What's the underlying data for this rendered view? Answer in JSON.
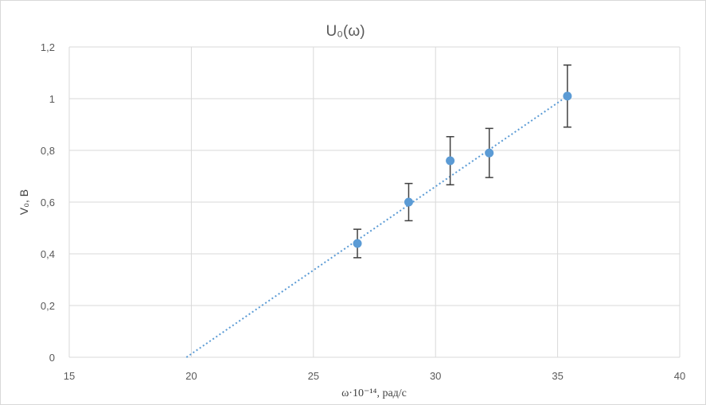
{
  "chart_data": {
    "type": "scatter",
    "title": "U₀(ω)",
    "xlabel": "ω·10⁻¹⁴, рад/с",
    "ylabel": "V₀, B",
    "xlim": [
      15,
      40
    ],
    "ylim": [
      0,
      1.2
    ],
    "x_ticks": [
      15,
      20,
      25,
      30,
      35,
      40
    ],
    "y_ticks": [
      0,
      0.2,
      0.4,
      0.6,
      0.8,
      1,
      1.2
    ],
    "x_tick_labels": [
      "15",
      "20",
      "25",
      "30",
      "35",
      "40"
    ],
    "y_tick_labels": [
      "0",
      "0,2",
      "0,4",
      "0,6",
      "0,8",
      "1",
      "1,2"
    ],
    "grid": true,
    "series": [
      {
        "x": [
          26.8,
          28.9,
          30.6,
          32.2,
          35.4
        ],
        "y": [
          0.44,
          0.6,
          0.76,
          0.79,
          1.01
        ],
        "error_plus": [
          0.055,
          0.072,
          0.093,
          0.095,
          0.12
        ],
        "error_minus": [
          0.055,
          0.072,
          0.093,
          0.095,
          0.12
        ],
        "color": "#5b9bd5"
      }
    ],
    "trendline": {
      "type": "linear",
      "x": [
        19.8,
        35.4
      ],
      "y": [
        0,
        1.01
      ],
      "color": "#5b9bd5",
      "style": "dotted"
    },
    "error_bar_color": "#404040",
    "grid_color": "#d9d9d9"
  }
}
